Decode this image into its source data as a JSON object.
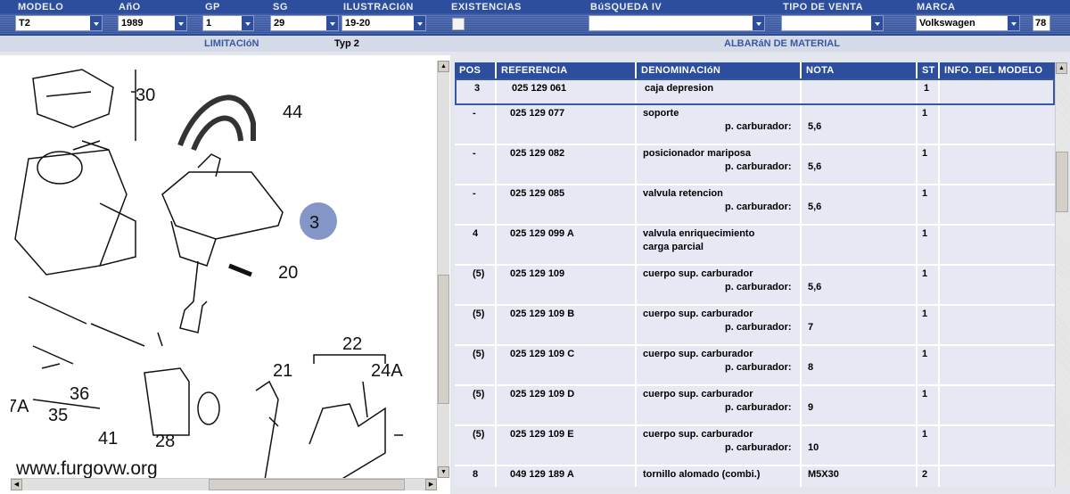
{
  "header": {
    "fields": [
      {
        "label": "MODELO",
        "value": "T2"
      },
      {
        "label": "AñO",
        "value": "1989"
      },
      {
        "label": "GP",
        "value": "1"
      },
      {
        "label": "SG",
        "value": "29"
      },
      {
        "label": "ILUSTRACIóN",
        "value": "19-20"
      },
      {
        "label": "EXISTENCIAS",
        "checked": false
      },
      {
        "label": "BúSQUEDA IV",
        "value": ""
      },
      {
        "label": "TIPO DE VENTA",
        "value": ""
      },
      {
        "label": "MARCA",
        "value": "Volkswagen"
      }
    ],
    "marca_code": "78"
  },
  "subheader": {
    "limitacion_label": "LIMITACIóN",
    "limitacion_value": "Typ 2",
    "albaran_title": "ALBARáN DE MATERIAL"
  },
  "diagram": {
    "callouts": [
      "30",
      "44",
      "3",
      "20",
      "22",
      "24A",
      "21",
      "36",
      "35",
      "41",
      "28",
      "7A"
    ],
    "highlighted": "3",
    "highlight_color": "#8496c8",
    "watermark": "www.furgovw.org"
  },
  "table": {
    "columns": [
      "POS",
      "REFERENCIA",
      "DENOMINACIóN",
      "NOTA",
      "ST",
      "INFO. DEL MODELO"
    ],
    "rows": [
      {
        "pos": "3",
        "ref": "025 129 061",
        "den": "caja depresion",
        "note_label": "",
        "note": "",
        "st": "1",
        "selected": true
      },
      {
        "pos": "-",
        "ref": "025 129 077",
        "den": "soporte",
        "note_label": "p. carburador:",
        "note": "5,6",
        "st": "1"
      },
      {
        "pos": "-",
        "ref": "025 129 082",
        "den": "posicionador mariposa",
        "note_label": "p. carburador:",
        "note": "5,6",
        "st": "1"
      },
      {
        "pos": "-",
        "ref": "025 129 085",
        "den": "valvula retencion",
        "note_label": "p. carburador:",
        "note": "5,6",
        "st": "1"
      },
      {
        "pos": "4",
        "ref": "025 129 099 A",
        "den": "valvula enriquecimiento",
        "den2": "carga parcial",
        "note_label": "",
        "note": "",
        "st": "1"
      },
      {
        "pos": "(5)",
        "ref": "025 129 109",
        "den": "cuerpo sup. carburador",
        "note_label": "p. carburador:",
        "note": "5,6",
        "st": "1"
      },
      {
        "pos": "(5)",
        "ref": "025 129 109 B",
        "den": "cuerpo sup. carburador",
        "note_label": "p. carburador:",
        "note": "7",
        "st": "1"
      },
      {
        "pos": "(5)",
        "ref": "025 129 109 C",
        "den": "cuerpo sup. carburador",
        "note_label": "p. carburador:",
        "note": "8",
        "st": "1"
      },
      {
        "pos": "(5)",
        "ref": "025 129 109 D",
        "den": "cuerpo sup. carburador",
        "note_label": "p. carburador:",
        "note": "9",
        "st": "1"
      },
      {
        "pos": "(5)",
        "ref": "025 129 109 E",
        "den": "cuerpo sup. carburador",
        "note_label": "p. carburador:",
        "note": "10",
        "st": "1"
      },
      {
        "pos": "8",
        "ref": "049 129 189 A",
        "den": "tornillo alomado (combi.)",
        "note_label": "",
        "note": "M5X30",
        "st": "2"
      }
    ]
  }
}
